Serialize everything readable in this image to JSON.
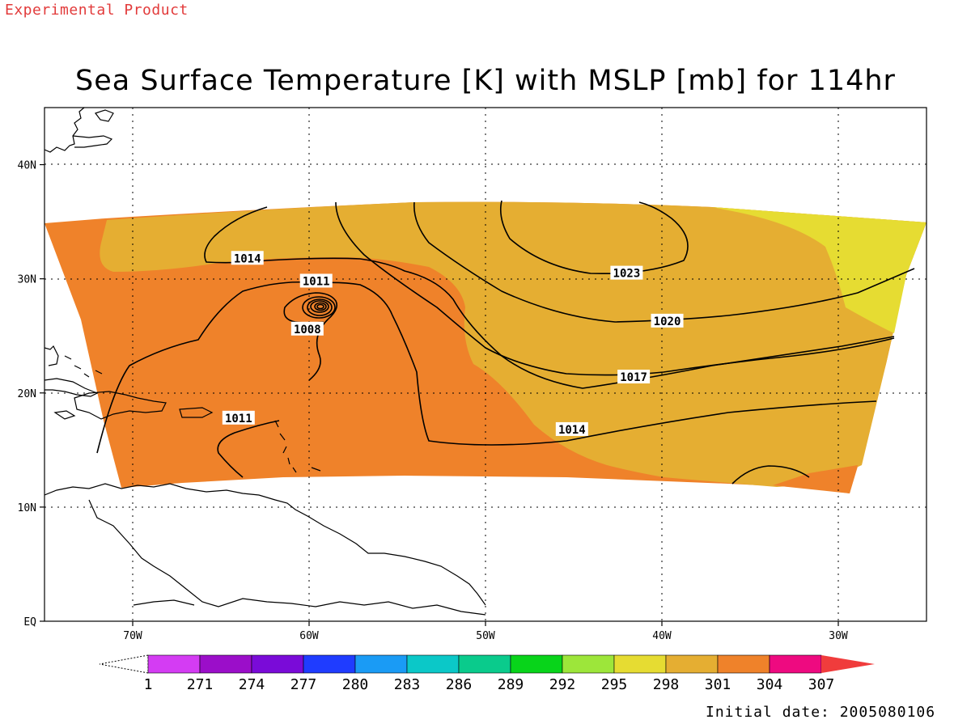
{
  "header": {
    "product_label": "Experimental Product",
    "title": "Sea Surface Temperature [K] with MSLP [mb] for 114hr",
    "initial_date_text": "Initial date: 2005080106"
  },
  "map": {
    "lon_ticks": [
      {
        "value": -70,
        "label": "70W"
      },
      {
        "value": -60,
        "label": "60W"
      },
      {
        "value": -50,
        "label": "50W"
      },
      {
        "value": -40,
        "label": "40W"
      },
      {
        "value": -30,
        "label": "30W"
      }
    ],
    "lat_ticks": [
      {
        "value": 40,
        "label": "40N"
      },
      {
        "value": 30,
        "label": "30N"
      },
      {
        "value": 20,
        "label": "20N"
      },
      {
        "value": 10,
        "label": "10N"
      },
      {
        "value": 0,
        "label": "EQ"
      }
    ],
    "extent": {
      "lon": [
        -75,
        -25
      ],
      "lat": [
        0,
        45
      ]
    },
    "grid": "dotted",
    "isobar_labels": [
      {
        "text": "1014",
        "lon": -63.5,
        "lat": 31.8
      },
      {
        "text": "1011",
        "lon": -59.6,
        "lat": 29.8
      },
      {
        "text": "1008",
        "lon": -60.1,
        "lat": 25.6
      },
      {
        "text": "1011",
        "lon": -64.0,
        "lat": 17.8
      },
      {
        "text": "1023",
        "lon": -42.0,
        "lat": 30.5
      },
      {
        "text": "1020",
        "lon": -39.7,
        "lat": 26.3
      },
      {
        "text": "1017",
        "lon": -41.6,
        "lat": 21.4
      },
      {
        "text": "1014",
        "lon": -45.1,
        "lat": 16.8
      }
    ]
  },
  "colorbar": {
    "labels": [
      "1",
      "271",
      "274",
      "277",
      "280",
      "283",
      "286",
      "289",
      "292",
      "295",
      "298",
      "301",
      "304",
      "307"
    ],
    "colors": [
      "#d43cf3",
      "#9b0ec9",
      "#7a0bd8",
      "#1f3cff",
      "#1a9bf5",
      "#0bc8c8",
      "#0acb8c",
      "#08d41a",
      "#9de63a",
      "#e6dc32",
      "#e5ae32",
      "#ef822a",
      "#ee0a80",
      "#f03c3c"
    ]
  },
  "colors": {
    "sst_298": "#e6dc32",
    "sst_301": "#e5ae32",
    "sst_304": "#ef822a",
    "grid": "#000000",
    "contour": "#000000",
    "product_label": "#e23b3b"
  }
}
